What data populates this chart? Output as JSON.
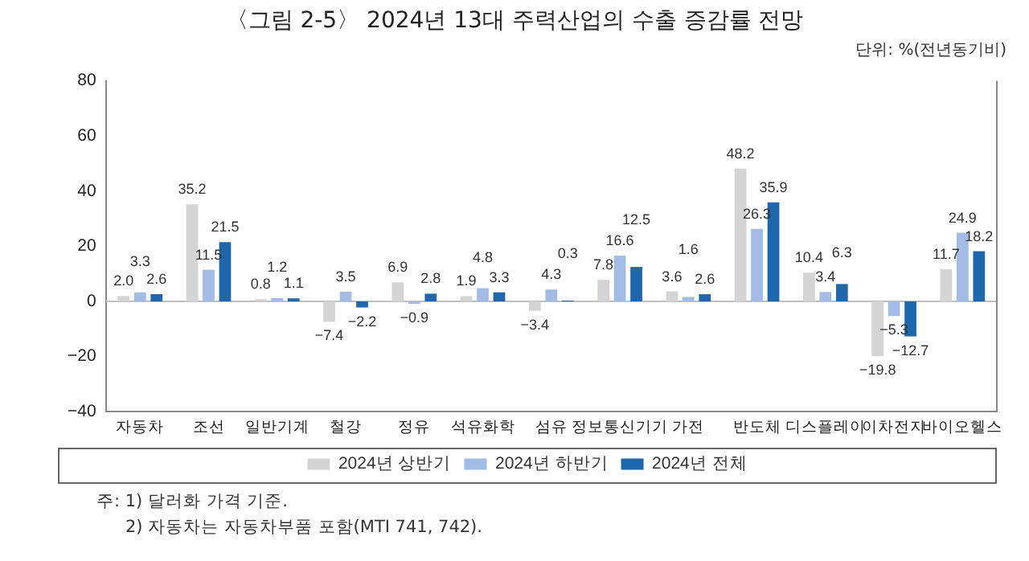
{
  "chart_data": {
    "type": "bar",
    "title": "〈그림 2-5〉 2024년 13대 주력산업의 수출 증감률 전망",
    "categories": [
      "자동차",
      "조선",
      "일반기계",
      "철강",
      "정유",
      "석유화학",
      "섬유",
      "정보통신기기",
      "가전",
      "반도체",
      "디스플레이",
      "이차전지",
      "바이오헬스"
    ],
    "series": [
      {
        "name": "2024년 상반기",
        "color": "#d4d4d4",
        "values": [
          2.0,
          35.2,
          0.8,
          -7.4,
          6.9,
          1.9,
          -3.4,
          7.8,
          3.6,
          48.2,
          10.4,
          -19.8,
          11.7
        ],
        "value_labels": [
          "2.0",
          "35.2",
          "0.8",
          "−7.4",
          "6.9",
          "1.9",
          "−3.4",
          "7.8",
          "3.6",
          "48.2",
          "10.4",
          "−19.8",
          "11.7"
        ]
      },
      {
        "name": "2024년 하반기",
        "color": "#a3bce6",
        "values": [
          3.3,
          11.5,
          1.2,
          3.5,
          -0.9,
          4.8,
          4.3,
          16.6,
          1.6,
          26.3,
          3.4,
          -5.3,
          24.9
        ],
        "value_labels": [
          "3.3",
          "11.5",
          "1.2",
          "3.5",
          "−0.9",
          "4.8",
          "4.3",
          "16.6",
          "1.6",
          "26.3",
          "3.4",
          "−5.3",
          "24.9"
        ]
      },
      {
        "name": "2024년 전체",
        "color": "#1f67ad",
        "values": [
          2.6,
          21.5,
          1.1,
          -2.2,
          2.8,
          3.3,
          0.3,
          12.5,
          2.6,
          35.9,
          6.3,
          -12.7,
          18.2
        ],
        "value_labels": [
          "2.6",
          "21.5",
          "1.1",
          "−2.2",
          "2.8",
          "3.3",
          "0.3",
          "12.5",
          "2.6",
          "35.9",
          "6.3",
          "−12.7",
          "18.2"
        ]
      }
    ],
    "ylim": [
      -40,
      80
    ],
    "yticks": [
      -40,
      -20,
      0,
      20,
      40,
      60,
      80
    ],
    "grid": false,
    "legend": "bottom",
    "ref_lines": [
      {
        "axis": "y",
        "value": 0,
        "color": "#bfbfbf"
      }
    ],
    "annotations": [
      "단위: %(전년동기비)",
      "주: 1) 달러화 가격 기준.",
      "2) 자동차는 자동차부품 포함(MTI 741, 742)."
    ]
  }
}
